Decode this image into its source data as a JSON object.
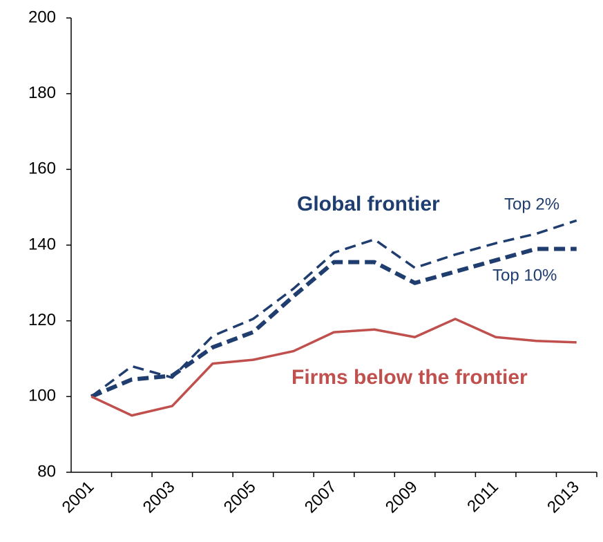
{
  "chart_data": {
    "type": "line",
    "categories": [
      "2001",
      null,
      "2003",
      null,
      "2005",
      null,
      "2007",
      null,
      "2009",
      null,
      "2011",
      null,
      "2013"
    ],
    "series": [
      {
        "name": "Top 2%",
        "color": "#1f3d6e",
        "line_style": "dashed",
        "values": [
          100,
          108,
          105,
          116,
          120.5,
          128.5,
          138,
          141.5,
          134,
          137.5,
          140.5,
          143,
          146.5
        ]
      },
      {
        "name": "Top 10%",
        "color": "#1f3d6e",
        "line_style": "dashed",
        "values": [
          100,
          104.5,
          105.5,
          113,
          117,
          126.5,
          135.5,
          135.5,
          130,
          133,
          136,
          139,
          139
        ]
      },
      {
        "name": "Firms below the frontier",
        "color": "#c0504d",
        "line_style": "solid",
        "values": [
          100,
          95,
          97.5,
          108.7,
          109.7,
          112,
          117,
          117.7,
          115.7,
          120.5,
          115.7,
          114.7,
          114.3
        ]
      }
    ],
    "annotations": [
      "Global frontier"
    ],
    "ylim": [
      80,
      200
    ],
    "yticks": [
      80,
      100,
      120,
      140,
      160,
      180,
      200
    ],
    "grid": false
  }
}
